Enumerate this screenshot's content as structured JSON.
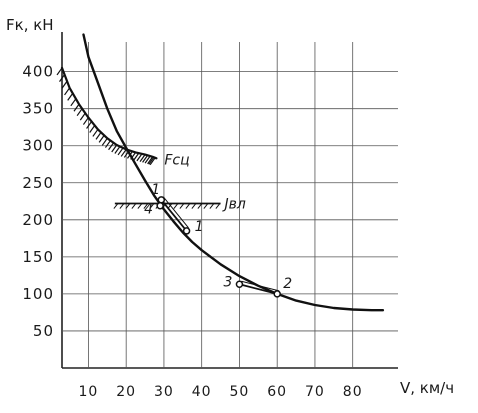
{
  "chart_data": {
    "type": "line",
    "title": "",
    "xlabel": "V, км/ч",
    "ylabel": "Fк, кН",
    "x_ticks": [
      10,
      20,
      30,
      40,
      50,
      60,
      70,
      80
    ],
    "y_ticks": [
      50,
      100,
      150,
      200,
      250,
      300,
      350,
      400
    ],
    "xlim": [
      3,
      92
    ],
    "ylim": [
      0,
      440
    ],
    "grid": true,
    "series": [
      {
        "name": "",
        "x": [
          8.7,
          10,
          12.5,
          15,
          17.5,
          20,
          22.5,
          25,
          27.5,
          30,
          32.5,
          35,
          37.5,
          40,
          45,
          50,
          55,
          60,
          65,
          70,
          75,
          80,
          85,
          88
        ],
        "y": [
          450,
          420,
          385,
          350,
          320,
          297,
          275,
          253,
          232,
          214,
          198,
          183,
          170,
          159,
          140,
          124,
          111,
          100,
          91,
          85,
          81,
          79,
          78,
          78
        ]
      },
      {
        "name": "Fсц",
        "x": [
          3,
          5,
          7.5,
          10,
          12.5,
          15,
          17.5,
          20,
          22.5,
          25,
          27,
          28
        ],
        "y": [
          405,
          378,
          356,
          338,
          322,
          310,
          301,
          295,
          291,
          288,
          285,
          283
        ]
      }
    ],
    "limit_line": {
      "label": "Jвл",
      "y": 222,
      "x_range": [
        17,
        45
      ]
    },
    "points": [
      {
        "label": "1",
        "x": 29.3,
        "y": 227
      },
      {
        "label": "1",
        "x": 36,
        "y": 185
      },
      {
        "label": "2",
        "x": 60,
        "y": 100
      },
      {
        "label": "3",
        "x": 50,
        "y": 113
      },
      {
        "label": "4",
        "x": 29,
        "y": 219
      }
    ],
    "transitions": [
      {
        "from": "1",
        "to": "1"
      },
      {
        "from": "3",
        "to": "2"
      }
    ]
  }
}
